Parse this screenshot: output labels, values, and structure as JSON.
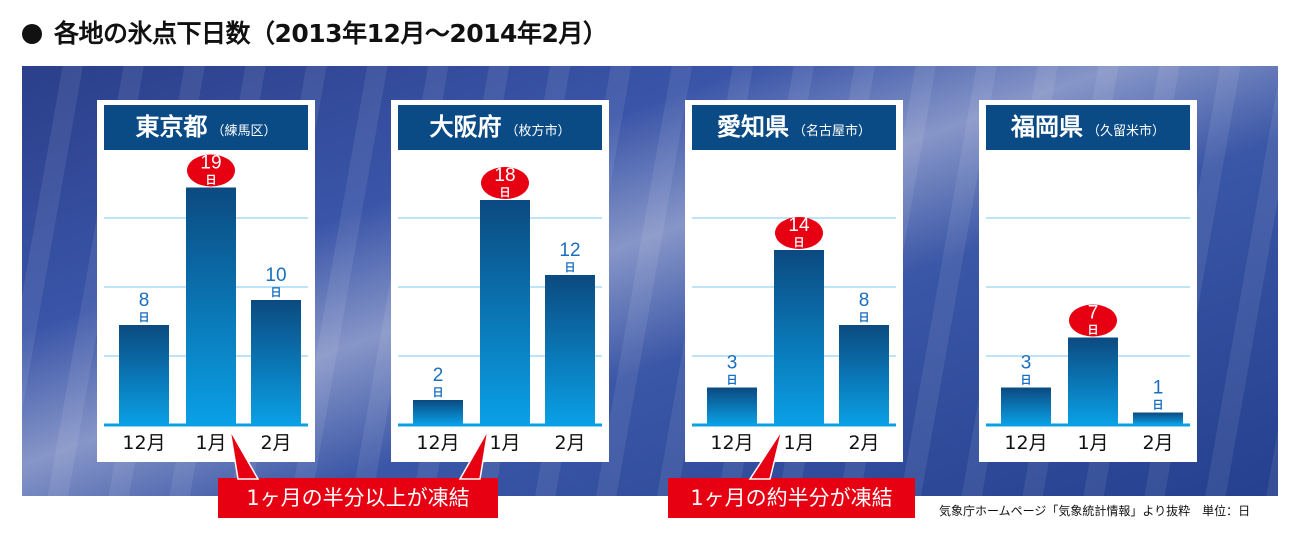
{
  "title": "各地の氷点下日数（2013年12月〜2014年2月）",
  "chart_data": {
    "type": "bar",
    "title": "各地の氷点下日数（2013年12月〜2014年2月）",
    "categories": [
      "12月",
      "1月",
      "2月"
    ],
    "unit_label": "日",
    "highlight_color": "#e60012",
    "bar_color": "#0a5fa8",
    "panels": [
      {
        "name": "東京都",
        "sub": "（練馬区）",
        "values": [
          8,
          19,
          10
        ]
      },
      {
        "name": "大阪府",
        "sub": "（枚方市）",
        "values": [
          2,
          18,
          12
        ]
      },
      {
        "name": "愛知県",
        "sub": "（名古屋市）",
        "values": [
          3,
          14,
          8
        ]
      },
      {
        "name": "福岡県",
        "sub": "（久留米市）",
        "values": [
          3,
          7,
          1
        ]
      }
    ]
  },
  "callouts": [
    "1ヶ月の半分以上が凍結",
    "1ヶ月の約半分が凍結"
  ],
  "source": "気象庁ホームページ「気象統計情報」より抜粋　単位：日"
}
